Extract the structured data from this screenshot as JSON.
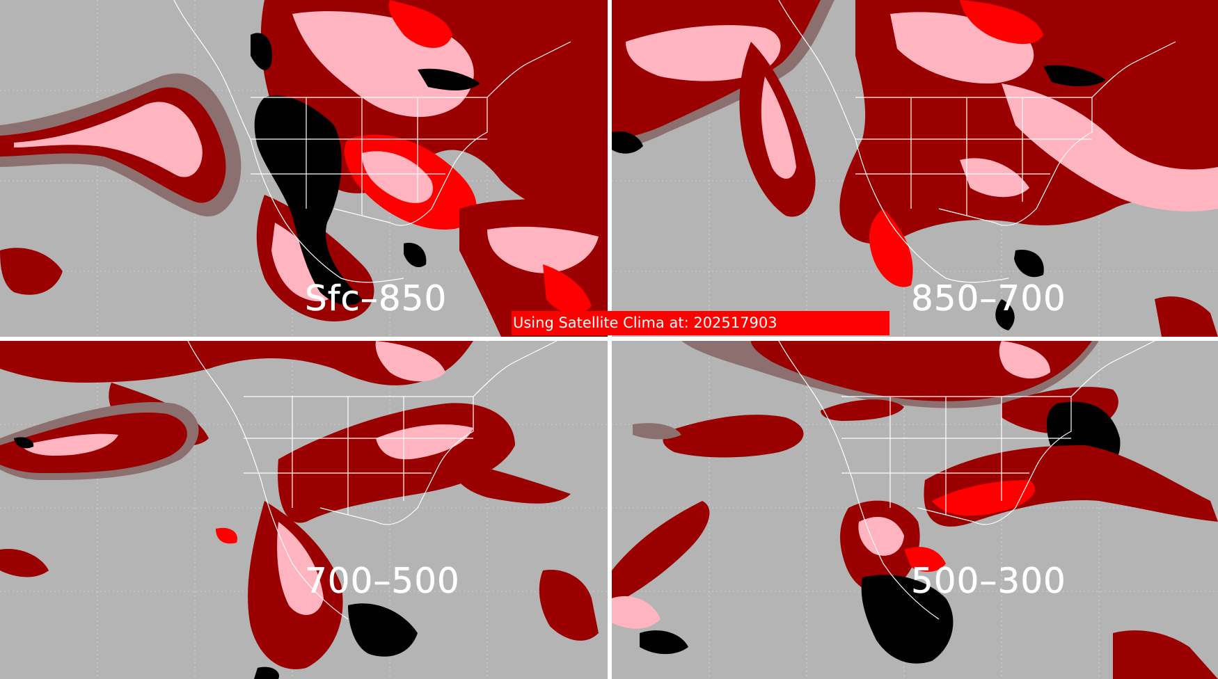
{
  "banner": {
    "text": "Using Satellite Clima at: 202517903"
  },
  "panels": [
    {
      "id": "tl",
      "label": "Sfc–850"
    },
    {
      "id": "tr",
      "label": "850–700"
    },
    {
      "id": "bl",
      "label": "700–500"
    },
    {
      "id": "br",
      "label": "500–300"
    }
  ],
  "colors": {
    "background": "#b4b4b4",
    "gray_moisture": "#8c7070",
    "dark_red": "#9b0000",
    "red": "#ff0000",
    "pink": "#ffb4c0",
    "black": "#000000",
    "outline": "#ffffff"
  }
}
